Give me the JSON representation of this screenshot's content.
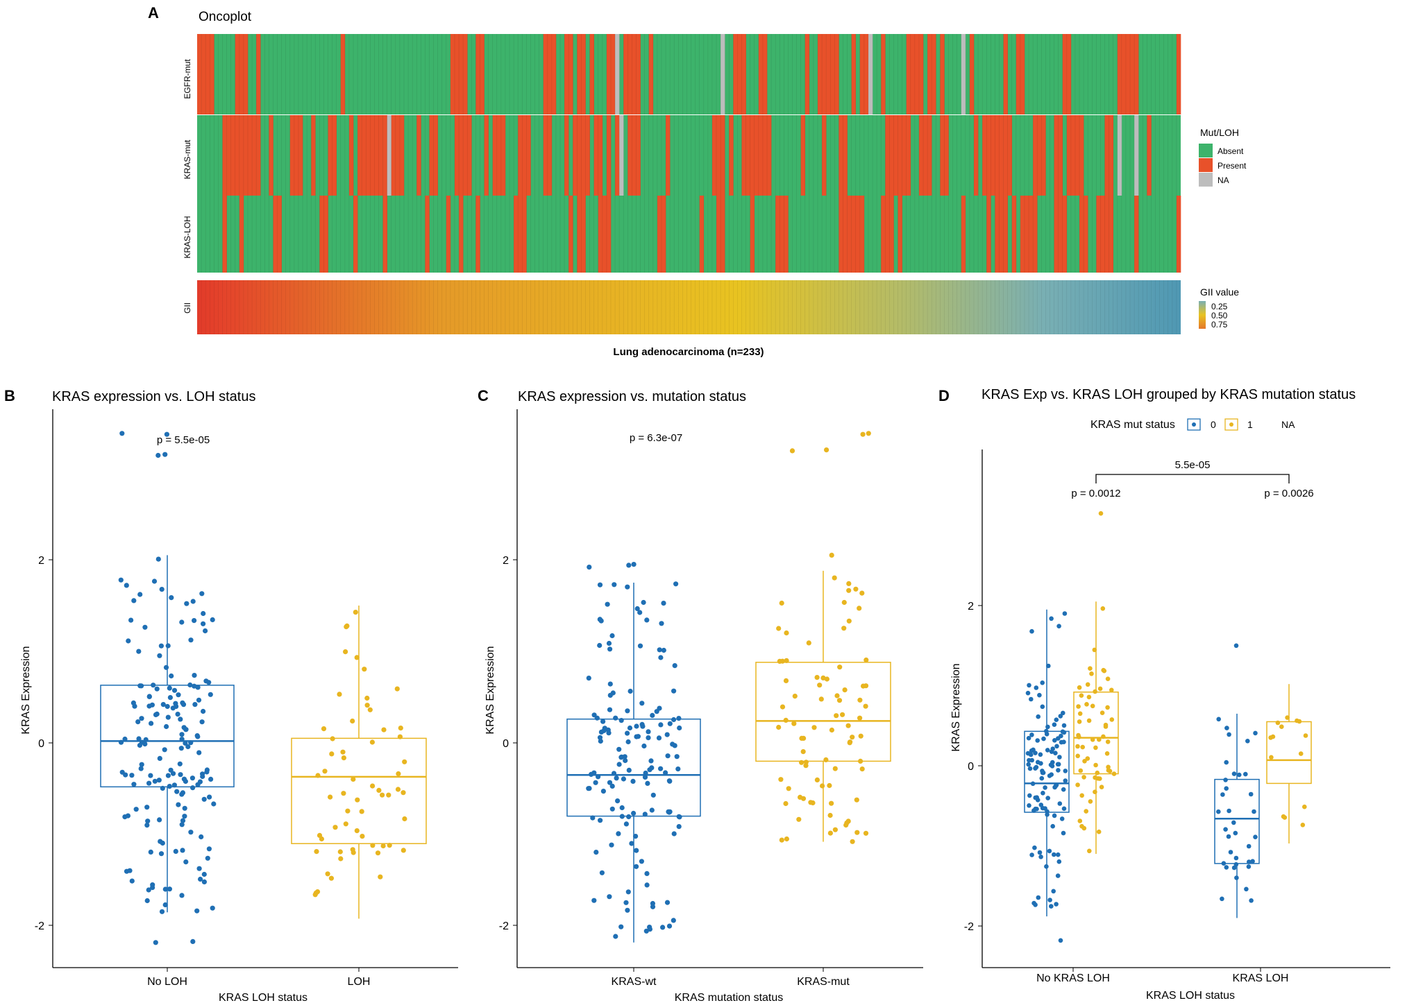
{
  "colors": {
    "absent": "#3db36b",
    "present": "#e8512a",
    "na": "#bdbdbd",
    "blue": "#1f6fb4",
    "yellow": "#e8b520",
    "gii_high": "#e23b2a",
    "gii_mid": "#e8c321",
    "gii_low": "#4f98b3"
  },
  "panel_a": {
    "letter": "A",
    "title": "Oncoplot",
    "rows": [
      "EGFR-mut",
      "KRAS-mut",
      "KRAS-LOH"
    ],
    "gii_label": "GII",
    "xlabel": "Lung adenocarcinoma (n=233)",
    "legend_title": "Mut/LOH",
    "legend_items": [
      "Absent",
      "Present",
      "NA"
    ],
    "gii_legend_title": "GII value",
    "gii_legend_items": [
      "0.25",
      "0.50",
      "0.75"
    ]
  },
  "panel_b": {
    "letter": "B",
    "title": "KRAS expression vs. LOH status",
    "pvalue": "p = 5.5e-05",
    "ylabel": "KRAS Expression",
    "xlabel": "KRAS LOH status",
    "ytick_labels": [
      "2",
      "0",
      "-2"
    ]
  },
  "panel_c": {
    "letter": "C",
    "title": "KRAS expression vs. mutation status",
    "pvalue": "p = 6.3e-07",
    "ylabel": "KRAS Expression",
    "xlabel": "KRAS mutation status",
    "ytick_labels": [
      "2",
      "0",
      "-2"
    ]
  },
  "panel_d": {
    "letter": "D",
    "title": "KRAS Exp vs. KRAS LOH grouped by KRAS mutation status",
    "legend_title": "KRAS mut status",
    "legend_items": [
      "0",
      "1",
      "NA"
    ],
    "bracket_pvalue": "5.5e-05",
    "pvalue_left": "p = 0.0012",
    "pvalue_right": "p = 0.0026",
    "ylabel": "KRAS Expression",
    "xlabel": "KRAS LOH status",
    "ytick_labels": [
      "2",
      "0",
      "-2"
    ]
  },
  "chart_data": [
    {
      "type": "heatmap",
      "title": "Oncoplot",
      "n_samples": 233,
      "rows": [
        "EGFR-mut",
        "KRAS-mut",
        "KRAS-LOH",
        "GII"
      ],
      "legend": [
        "Absent",
        "Present",
        "NA"
      ],
      "gii_range": [
        0.25,
        0.75
      ],
      "xlabel": "Lung adenocarcinoma (n=233)"
    },
    {
      "type": "box",
      "title": "KRAS expression vs. LOH status",
      "categories": [
        "No LOH",
        "LOH"
      ],
      "ylim": [
        -2.3,
        3.5
      ],
      "yticks": [
        -2,
        0,
        2
      ],
      "boxes": [
        {
          "min": -1.85,
          "q1": -0.48,
          "median": 0.02,
          "q3": 0.63,
          "max": 2.05,
          "n": 165,
          "outliers": [
            3.38,
            3.37,
            3.15,
            3.14,
            -2.18,
            -2.17
          ]
        },
        {
          "min": -1.92,
          "q1": -1.1,
          "median": -0.37,
          "q3": 0.05,
          "max": 1.5,
          "n": 60,
          "outliers": []
        }
      ],
      "pvalue": "p = 5.5e-05",
      "xlabel": "KRAS LOH status",
      "ylabel": "KRAS Expression"
    },
    {
      "type": "box",
      "title": "KRAS expression vs. mutation status",
      "categories": [
        "KRAS-wt",
        "KRAS-mut"
      ],
      "ylim": [
        -2.3,
        3.5
      ],
      "yticks": [
        -2,
        0,
        2
      ],
      "boxes": [
        {
          "min": -2.18,
          "q1": -0.8,
          "median": -0.35,
          "q3": 0.26,
          "max": 1.75,
          "n": 145,
          "outliers": [
            1.95,
            1.94,
            1.92
          ]
        },
        {
          "min": -1.08,
          "q1": -0.2,
          "median": 0.24,
          "q3": 0.88,
          "max": 1.88,
          "n": 80,
          "outliers": [
            3.38,
            3.37,
            3.2,
            3.19,
            2.05
          ]
        }
      ],
      "pvalue": "p = 6.3e-07",
      "xlabel": "KRAS mutation status",
      "ylabel": "KRAS Expression"
    },
    {
      "type": "box",
      "title": "KRAS Exp vs. KRAS LOH grouped by KRAS mutation status",
      "categories": [
        "No KRAS LOH",
        "KRAS LOH"
      ],
      "ylim": [
        -2.3,
        4.0
      ],
      "yticks": [
        -2,
        0,
        2
      ],
      "series": [
        {
          "name": "0",
          "boxes": [
            {
              "min": -1.88,
              "q1": -0.58,
              "median": -0.22,
              "q3": 0.43,
              "max": 1.95,
              "n": 110,
              "outliers": [
                -2.18
              ]
            },
            {
              "min": -1.9,
              "q1": -1.22,
              "median": -0.66,
              "q3": -0.17,
              "max": 0.65,
              "n": 35,
              "outliers": [
                1.5
              ]
            }
          ]
        },
        {
          "name": "1",
          "boxes": [
            {
              "min": -1.1,
              "q1": -0.1,
              "median": 0.35,
              "q3": 0.92,
              "max": 2.05,
              "n": 60,
              "outliers": [
                3.15
              ]
            },
            {
              "min": -0.97,
              "q1": -0.22,
              "median": 0.07,
              "q3": 0.55,
              "max": 1.02,
              "n": 14,
              "outliers": []
            }
          ]
        }
      ],
      "annotations": [
        "5.5e-05",
        "p = 0.0012",
        "p = 0.0026"
      ],
      "xlabel": "KRAS LOH status",
      "ylabel": "KRAS Expression"
    }
  ]
}
